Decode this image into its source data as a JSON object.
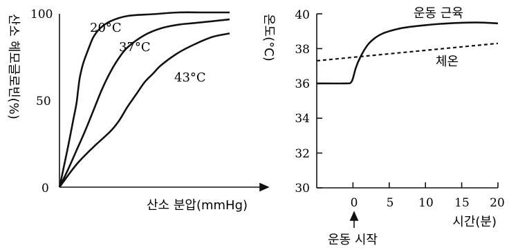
{
  "chart_data": [
    {
      "type": "line",
      "ylabel": "산소 헤모글로빈(%)",
      "xlabel": "산소 분압(mmHg)",
      "ylim": [
        0,
        100
      ],
      "y_ticks": [
        "0",
        "50",
        "100"
      ],
      "series": [
        {
          "name": "20°C",
          "x": [
            0,
            2,
            5,
            8,
            10,
            11,
            12,
            14,
            17,
            20,
            24,
            30,
            40,
            55,
            70,
            85,
            100
          ],
          "y": [
            0,
            9,
            23,
            38,
            48,
            56,
            63,
            71,
            79,
            86,
            91,
            95,
            98,
            99,
            100,
            100,
            100
          ]
        },
        {
          "name": "37°C",
          "x": [
            0,
            5,
            10,
            15,
            20,
            25,
            30,
            35,
            40,
            50,
            60,
            70,
            80,
            90,
            100
          ],
          "y": [
            0,
            10,
            21,
            32,
            44,
            56,
            66,
            74,
            80,
            87,
            91,
            93,
            94,
            95,
            96
          ]
        },
        {
          "name": "43°C",
          "x": [
            0,
            10,
            20,
            30,
            35,
            40,
            45,
            50,
            55,
            60,
            70,
            80,
            90,
            100
          ],
          "y": [
            0,
            13,
            23,
            32,
            38,
            46,
            53,
            60,
            65,
            70,
            77,
            82,
            86,
            88
          ]
        }
      ]
    },
    {
      "type": "line",
      "ylabel": "온도(°C)",
      "xlabel": "시간(분)",
      "xlim": [
        -5,
        20
      ],
      "ylim": [
        30,
        40
      ],
      "x_ticks": [
        "0",
        "5",
        "10",
        "15",
        "20"
      ],
      "y_ticks": [
        "30",
        "32",
        "34",
        "36",
        "38",
        "40"
      ],
      "annotation": "운동 시작",
      "series": [
        {
          "name": "운동 근육",
          "style": "solid",
          "x": [
            -5,
            -1,
            -0.3,
            0,
            0.4,
            1,
            2,
            3,
            4,
            5,
            7,
            10,
            13,
            17,
            20
          ],
          "y": [
            36.0,
            36.0,
            36.05,
            36.3,
            36.9,
            37.5,
            38.2,
            38.6,
            38.85,
            39.0,
            39.2,
            39.35,
            39.45,
            39.5,
            39.45
          ]
        },
        {
          "name": "체온",
          "style": "dashed",
          "x": [
            -5,
            20
          ],
          "y": [
            37.3,
            38.3
          ]
        }
      ]
    }
  ]
}
